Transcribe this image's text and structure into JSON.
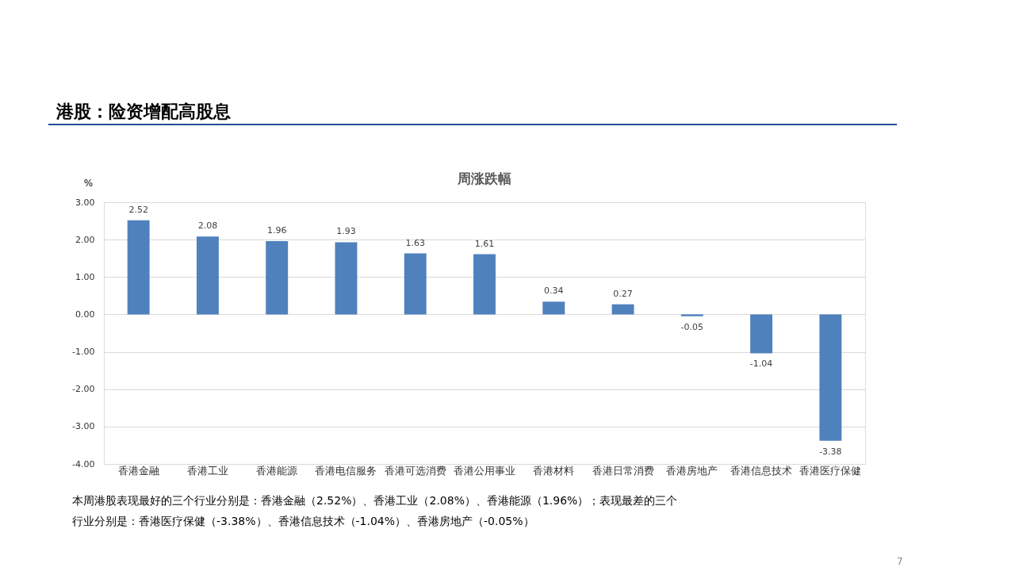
{
  "chart_data": {
    "type": "bar",
    "title": "港股：险资增配高股息",
    "subtitle": "周涨跌幅",
    "ylabel": "%",
    "categories": [
      "香港金融",
      "香港工业",
      "香港能源",
      "香港电信服务",
      "香港可选消费",
      "香港公用事业",
      "香港材料",
      "香港日常消费",
      "香港房地产",
      "香港信息技术",
      "香港医疗保健"
    ],
    "values": [
      2.52,
      2.08,
      1.96,
      1.93,
      1.63,
      1.61,
      0.34,
      0.27,
      -0.05,
      -1.04,
      -3.38
    ],
    "color": "#4f81bd",
    "ylim": [
      -4,
      3
    ],
    "yticks": [
      {
        "value": -4,
        "label": "-4.00"
      },
      {
        "value": -3,
        "label": "-3.00"
      },
      {
        "value": -2,
        "label": "-2.00"
      },
      {
        "value": -1,
        "label": "-1.00"
      },
      {
        "value": 0,
        "label": "0.00"
      },
      {
        "value": 1,
        "label": "1.00"
      },
      {
        "value": 2,
        "label": "2.00"
      },
      {
        "value": 3,
        "label": "3.00"
      }
    ],
    "grid": "y",
    "data_labels": true,
    "annotations": [
      "本周港股表现最好的三个行业分别是：香港金融（2.52%）、香港工业（2.08%）、香港能源（1.96%）；表现最差的三个行业分别是：香港医疗保健（-3.38%）、香港信息技术（-1.04%）、香港房地产（-0.05%）",
      "7"
    ]
  }
}
